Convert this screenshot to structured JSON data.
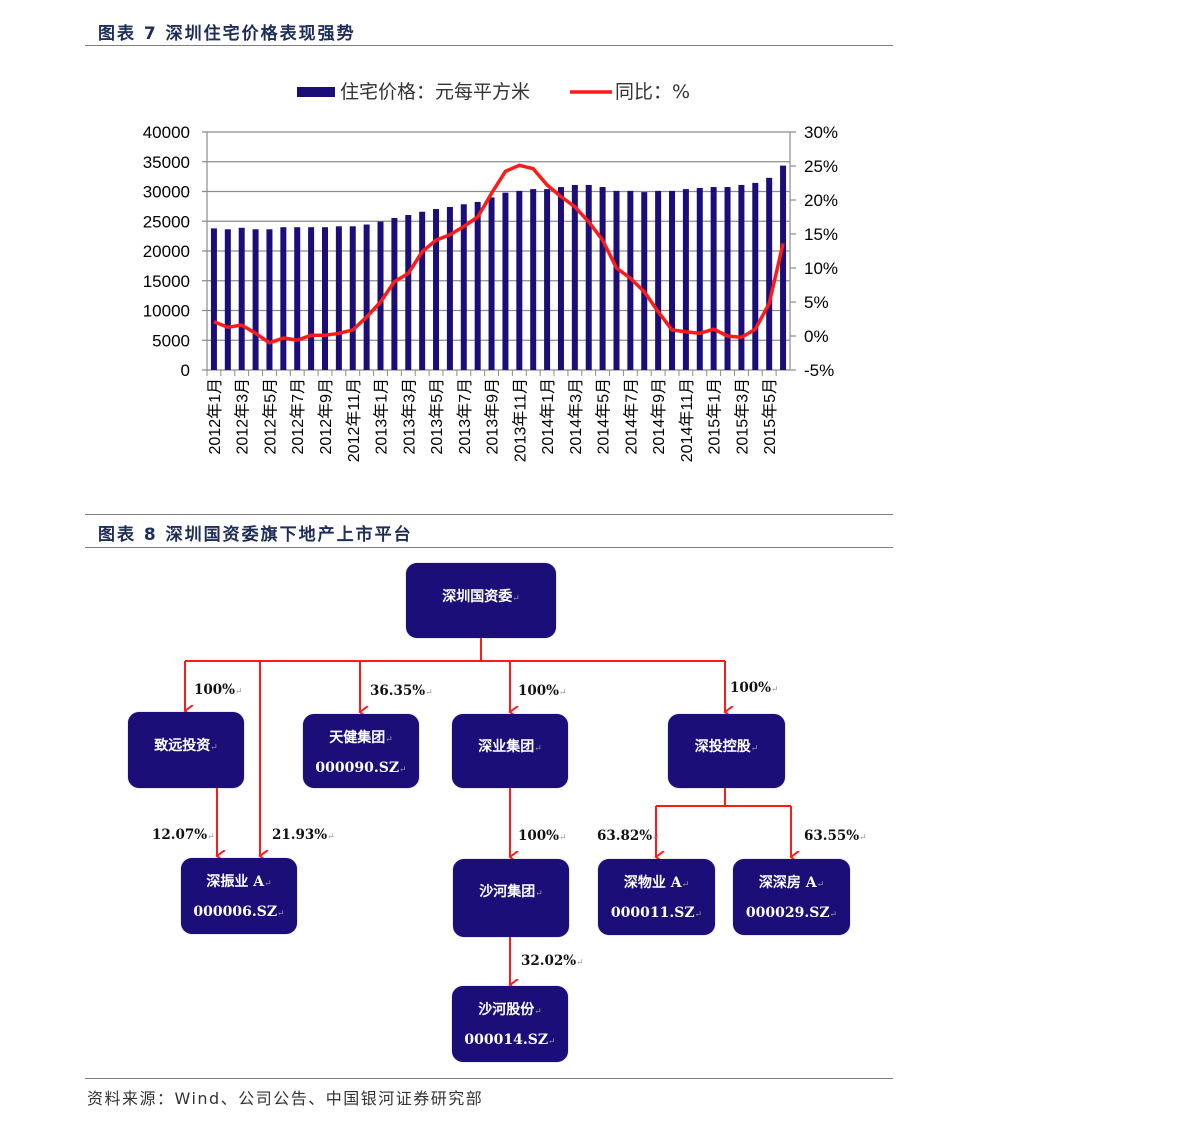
{
  "figure7": {
    "title": "图表 7   深圳住宅价格表现强势"
  },
  "chart_data": {
    "type": "bar+line",
    "legend_placement": "top",
    "grid": true,
    "legend": [
      "住宅价格：元每平方米",
      "同比：%"
    ],
    "x": [
      "2012-01",
      "2012-02",
      "2012-03",
      "2012-04",
      "2012-05",
      "2012-06",
      "2012-07",
      "2012-08",
      "2012-09",
      "2012-10",
      "2012-11",
      "2012-12",
      "2013-01",
      "2013-02",
      "2013-03",
      "2013-04",
      "2013-05",
      "2013-06",
      "2013-07",
      "2013-08",
      "2013-09",
      "2013-10",
      "2013-11",
      "2013-12",
      "2014-01",
      "2014-02",
      "2014-03",
      "2014-04",
      "2014-05",
      "2014-06",
      "2014-07",
      "2014-08",
      "2014-09",
      "2014-10",
      "2014-11",
      "2014-12",
      "2015-01",
      "2015-02",
      "2015-03",
      "2015-04",
      "2015-05",
      "2015-06"
    ],
    "x_tick_labels": [
      "2012年1月",
      "2012年3月",
      "2012年5月",
      "2012年7月",
      "2012年9月",
      "2012年11月",
      "2013年1月",
      "2013年3月",
      "2013年5月",
      "2013年7月",
      "2013年9月",
      "2013年11月",
      "2014年1月",
      "2014年3月",
      "2014年5月",
      "2014年7月",
      "2014年9月",
      "2014年11月",
      "2015年1月",
      "2015年3月",
      "2015年5月"
    ],
    "series": [
      {
        "name": "住宅价格：元每平方米",
        "type": "bar",
        "axis": "left",
        "color": "#1b0e78",
        "values": [
          23800,
          23650,
          23900,
          23650,
          23650,
          24000,
          24000,
          24000,
          24000,
          24150,
          24150,
          24450,
          24950,
          25550,
          26050,
          26600,
          27050,
          27400,
          27850,
          28250,
          29000,
          29800,
          30100,
          30400,
          30400,
          30750,
          31100,
          31100,
          30750,
          30100,
          30100,
          29900,
          30100,
          30100,
          30400,
          30600,
          30750,
          30750,
          31100,
          31450,
          32300,
          34350
        ]
      },
      {
        "name": "同比：%",
        "type": "line",
        "axis": "right",
        "color": "#ff1a1a",
        "values": [
          2.1,
          1.3,
          1.6,
          0.4,
          -1.0,
          -0.3,
          -0.6,
          0.1,
          0.1,
          0.4,
          0.9,
          2.8,
          5.0,
          8.0,
          9.2,
          12.4,
          14.1,
          14.9,
          16.1,
          17.5,
          21.0,
          24.2,
          25.1,
          24.6,
          22.2,
          20.5,
          19.0,
          16.8,
          14.1,
          10.0,
          8.5,
          6.5,
          3.6,
          0.9,
          0.6,
          0.4,
          1.0,
          0.0,
          -0.2,
          1.0,
          4.8,
          13.6
        ]
      }
    ],
    "y_left": {
      "range": [
        0,
        40000
      ],
      "ticks": [
        "0",
        "5000",
        "10000",
        "15000",
        "20000",
        "25000",
        "30000",
        "35000",
        "40000"
      ]
    },
    "y_right": {
      "range": [
        -5,
        30
      ],
      "ticks": [
        "-5%",
        "0%",
        "5%",
        "10%",
        "15%",
        "20%",
        "25%",
        "30%"
      ]
    }
  },
  "figure8": {
    "title": "图表 8   深圳国资委旗下地产上市平台",
    "nodes": {
      "root": {
        "name": "深圳国资委"
      },
      "zhiyuan": {
        "name": "致远投资"
      },
      "tianjian": {
        "name": "天健集团",
        "code": "000090.SZ"
      },
      "shenye": {
        "name": "深业集团"
      },
      "shentou": {
        "name": "深投控股"
      },
      "shenzhenye": {
        "name": "深振业 A",
        "code": "000006.SZ"
      },
      "shahe": {
        "name": "沙河集团"
      },
      "shenwuye": {
        "name": "深物业 A",
        "code": "000011.SZ"
      },
      "shenshenfang": {
        "name": "深深房 A",
        "code": "000029.SZ"
      },
      "shahegufen": {
        "name": "沙河股份",
        "code": "000014.SZ"
      }
    },
    "edges": {
      "root_zhiyuan": "100%",
      "root_tianjian": "36.35%",
      "root_shenye": "100%",
      "root_shentou": "100%",
      "zhiyuan_shenzhenye": "12.07%",
      "root_shenzhenye": "21.93%",
      "shenye_shahe": "100%",
      "shentou_shenwuye": "63.82%",
      "shentou_shenshenfang": "63.55%",
      "shahe_shahegufen": "32.02%"
    },
    "line_color": "#ff1a1a",
    "box_color": "#1b0e78"
  },
  "source": "资料来源：Wind、公司公告、中国银河证券研究部"
}
